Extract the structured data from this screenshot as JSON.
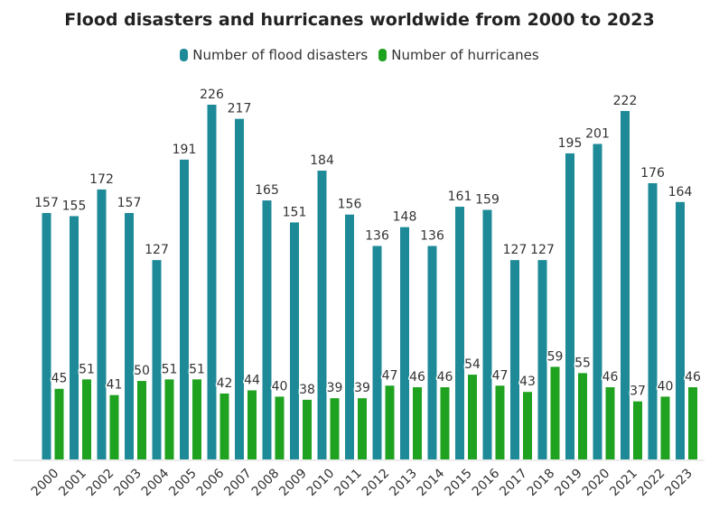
{
  "chart_data": {
    "type": "bar",
    "title": "Flood disasters and hurricanes worldwide from 2000 to 2023",
    "xlabel": "",
    "ylabel": "",
    "grid": false,
    "legend_position": "top-center",
    "categories": [
      "2000",
      "2001",
      "2002",
      "2003",
      "2004",
      "2005",
      "2006",
      "2007",
      "2008",
      "2009",
      "2010",
      "2011",
      "2012",
      "2013",
      "2014",
      "2015",
      "2016",
      "2017",
      "2018",
      "2019",
      "2020",
      "2021",
      "2022",
      "2023"
    ],
    "series": [
      {
        "name": "Number of flood disasters",
        "color": "#1e8a98",
        "values": [
          157,
          155,
          172,
          157,
          127,
          191,
          226,
          217,
          165,
          151,
          184,
          156,
          136,
          148,
          136,
          161,
          159,
          127,
          127,
          195,
          201,
          222,
          176,
          164
        ]
      },
      {
        "name": "Number of hurricanes",
        "color": "#1fa21f",
        "values": [
          45,
          51,
          41,
          50,
          51,
          51,
          42,
          44,
          40,
          38,
          39,
          39,
          47,
          46,
          46,
          54,
          47,
          43,
          59,
          55,
          46,
          37,
          40,
          46
        ]
      }
    ],
    "ylim": [
      0,
      226
    ]
  }
}
